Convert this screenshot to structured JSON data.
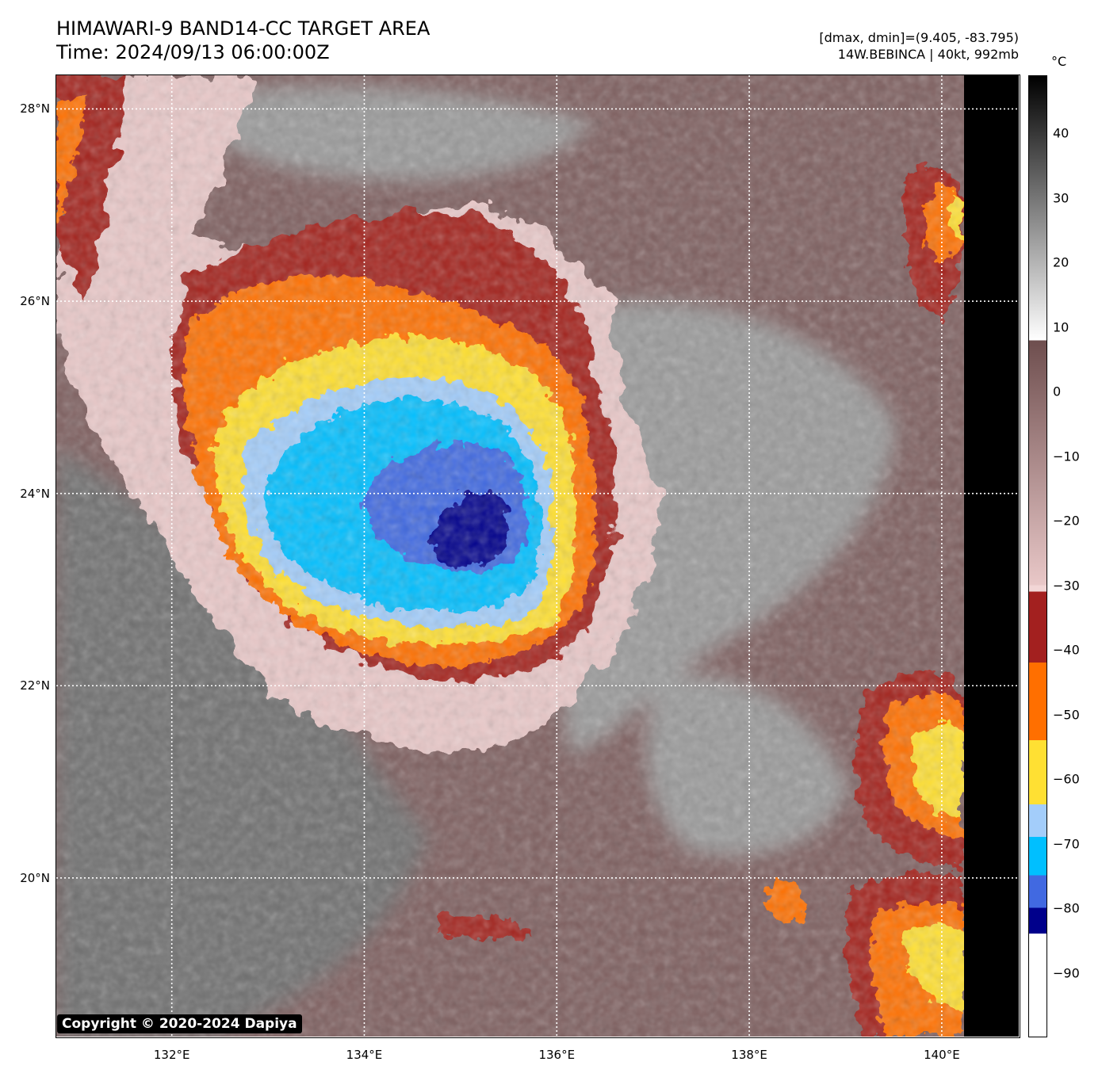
{
  "header": {
    "title_line1": "HIMAWARI-9 BAND14-CC TARGET AREA",
    "title_line2": "Time: 2024/09/13 06:00:00Z",
    "range_text": "[dmax, dmin]=(9.405, -83.795)",
    "storm_text": "14W.BEBINCA | 40kt, 992mb"
  },
  "axes": {
    "lat_labels": [
      "28°N",
      "26°N",
      "24°N",
      "22°N",
      "20°N"
    ],
    "lat_values": [
      28,
      26,
      24,
      22,
      20
    ],
    "lon_labels": [
      "132°E",
      "134°E",
      "136°E",
      "138°E",
      "140°E"
    ],
    "lon_values": [
      132,
      134,
      136,
      138,
      140
    ],
    "lat_range": [
      18.35,
      28.35
    ],
    "lon_range": [
      130.8,
      140.8
    ]
  },
  "colorbar": {
    "unit": "°C",
    "labels": [
      "40",
      "30",
      "20",
      "10",
      "0",
      "−10",
      "−20",
      "−30",
      "−40",
      "−50",
      "−60",
      "−70",
      "−80",
      "−90"
    ],
    "values": [
      40,
      30,
      20,
      10,
      0,
      -10,
      -20,
      -30,
      -40,
      -50,
      -60,
      -70,
      -80,
      -90
    ],
    "range": [
      -100,
      49
    ],
    "stops": [
      {
        "from": -100,
        "to": -84,
        "color": "#ffffff"
      },
      {
        "from": -84,
        "to": -80,
        "color": "#00008b"
      },
      {
        "from": -80,
        "to": -75,
        "color": "#4169e1"
      },
      {
        "from": -75,
        "to": -69,
        "color": "#00bfff"
      },
      {
        "from": -69,
        "to": -64,
        "color": "#a3cdfa"
      },
      {
        "from": -64,
        "to": -54,
        "color": "#ffe033"
      },
      {
        "from": -54,
        "to": -42,
        "color": "#ff6f00"
      },
      {
        "from": -42,
        "to": -31,
        "color": "#a3201f"
      },
      {
        "from": -31,
        "to": -30,
        "color": "#f2d6d6"
      },
      {
        "from": -30,
        "to": 8,
        "gradient": [
          "#e9c8c8",
          "#6e4e4e"
        ]
      },
      {
        "from": 8,
        "to": 49,
        "gradient": [
          "#ffffff",
          "#000000"
        ]
      }
    ]
  },
  "palette": {
    "deep_core": "#00008b",
    "core": "#4169e1",
    "cyan": "#00bfff",
    "light_blue": "#a3cdfa",
    "yellow": "#ffe033",
    "orange": "#ff6f00",
    "dark_red": "#a3201f",
    "pink": "#e9c8c8",
    "brown": "#7e5f5f",
    "gray": "#9a9a9a",
    "dark_gray": "#6f6f6f"
  },
  "copyright": "Copyright © 2020-2024 Dapiya"
}
